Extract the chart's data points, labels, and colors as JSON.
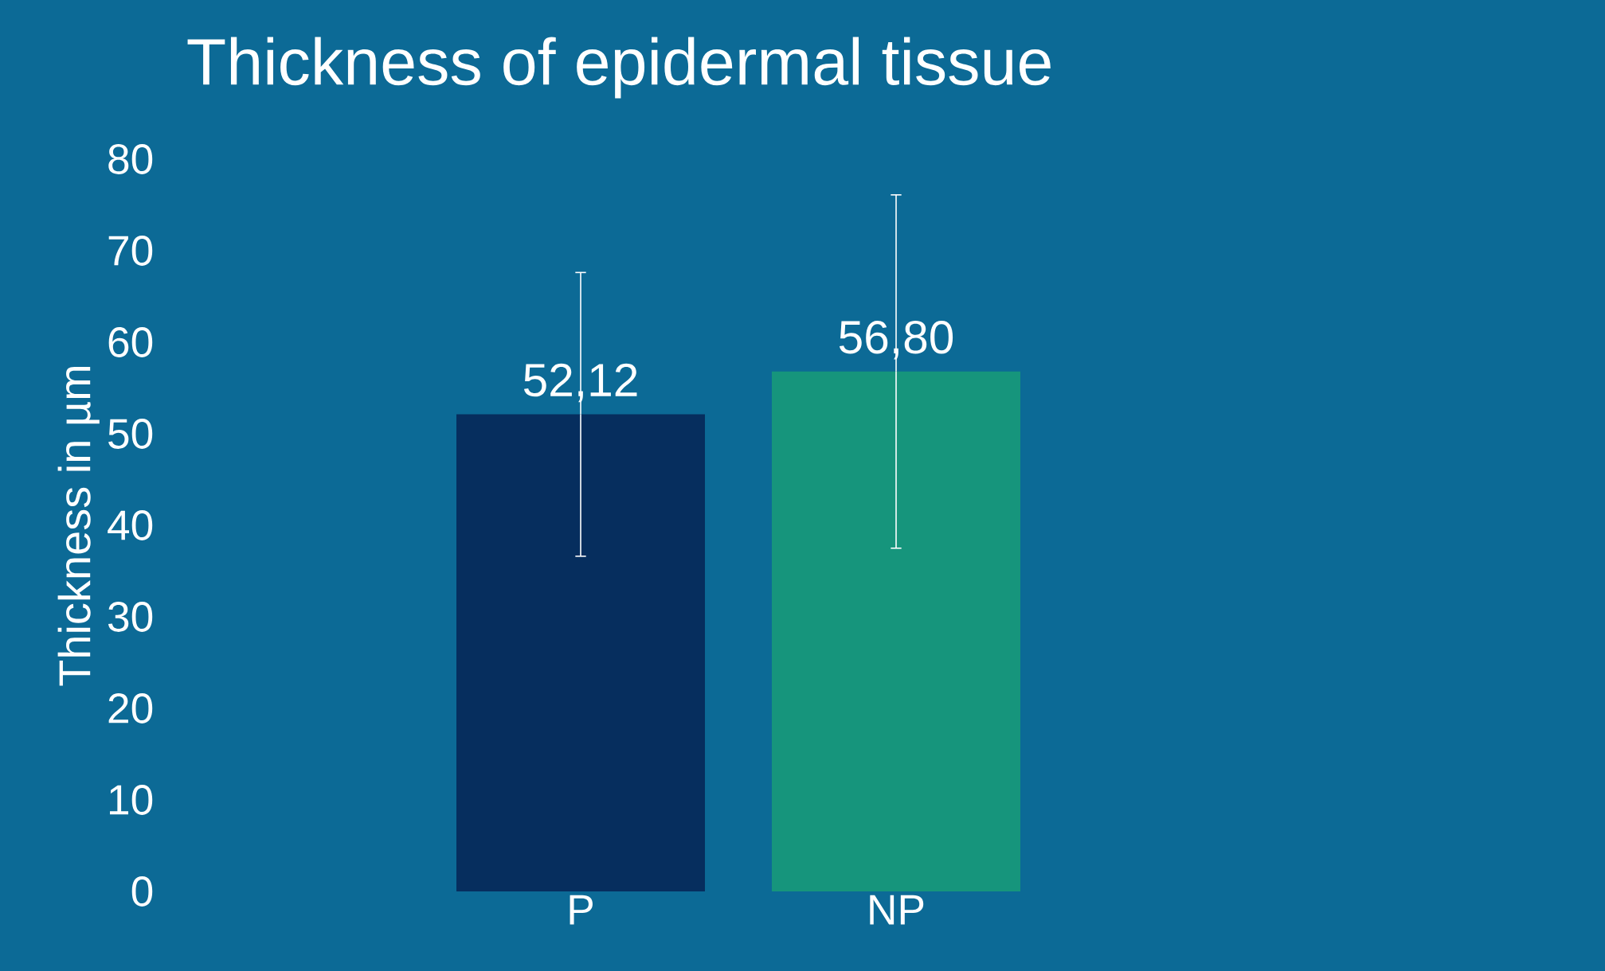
{
  "chart_data": {
    "type": "bar",
    "title": "Thickness of epidermal tissue",
    "ylabel": "Thickness in µm",
    "categories": [
      "P",
      "NP"
    ],
    "values": [
      52.12,
      56.8
    ],
    "colors": [
      "#062e5e",
      "#16957c"
    ],
    "errors": [
      15.5,
      19.3
    ],
    "value_labels": [
      "52,12",
      "56,80"
    ],
    "ylim": [
      0,
      80
    ],
    "yticks": [
      0,
      10,
      20,
      30,
      40,
      50,
      60,
      70,
      80
    ]
  }
}
